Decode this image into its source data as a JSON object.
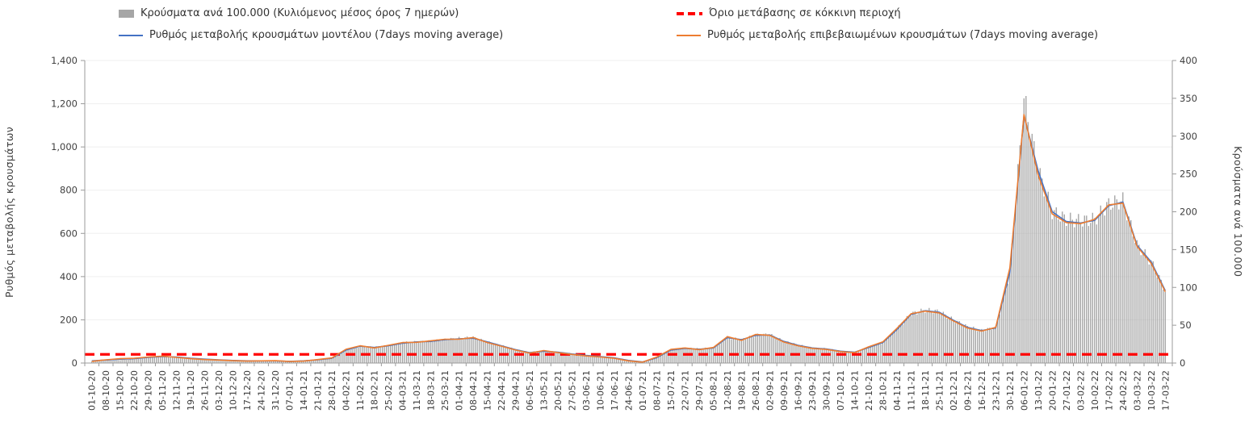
{
  "chart_data": {
    "type": "bar+line",
    "title": "",
    "left_axis": {
      "label": "Ρυθμός μεταβολής κρουσμάτων",
      "min": 0,
      "max": 1400,
      "step": 200,
      "tick_labels": [
        "0",
        "200",
        "400",
        "600",
        "800",
        "1,000",
        "1,200",
        "1,400"
      ]
    },
    "right_axis": {
      "label": "Κρούσματα ανά 100.000",
      "min": 0,
      "max": 400,
      "step": 50,
      "tick_labels": [
        "0",
        "50",
        "100",
        "150",
        "200",
        "250",
        "300",
        "350",
        "400"
      ]
    },
    "threshold": {
      "label": "Όριο μετάβασης σε κόκκινη περιοχή",
      "value": 40,
      "axis": "left",
      "color": "#ff0000"
    },
    "x_labels": [
      "01-10-20",
      "08-10-20",
      "15-10-20",
      "22-10-20",
      "29-10-20",
      "05-11-20",
      "12-11-20",
      "19-11-20",
      "26-11-20",
      "03-12-20",
      "10-12-20",
      "17-12-20",
      "24-12-20",
      "31-12-20",
      "07-01-21",
      "14-01-21",
      "21-01-21",
      "28-01-21",
      "04-02-21",
      "11-02-21",
      "18-02-21",
      "25-02-21",
      "04-03-21",
      "11-03-21",
      "18-03-21",
      "25-03-21",
      "01-04-21",
      "08-04-21",
      "15-04-21",
      "22-04-21",
      "29-04-21",
      "06-05-21",
      "13-05-21",
      "20-05-21",
      "27-05-21",
      "03-06-21",
      "10-06-21",
      "17-06-21",
      "24-06-21",
      "01-07-21",
      "08-07-21",
      "15-07-21",
      "22-07-21",
      "29-07-21",
      "05-08-21",
      "12-08-21",
      "19-08-21",
      "26-08-21",
      "02-09-21",
      "09-09-21",
      "16-09-21",
      "23-09-21",
      "30-09-21",
      "07-10-21",
      "14-10-21",
      "21-10-21",
      "28-10-21",
      "04-11-21",
      "11-11-21",
      "18-11-21",
      "25-11-21",
      "02-12-21",
      "09-12-21",
      "16-12-21",
      "23-12-21",
      "30-12-21",
      "06-01-22",
      "13-01-22",
      "20-01-22",
      "27-01-22",
      "03-02-22",
      "10-02-22",
      "17-02-22",
      "24-02-22",
      "03-03-22",
      "10-03-22",
      "17-03-22"
    ],
    "series": [
      {
        "name": "Κρούσματα ανά 100.000 (Κυλιόμενος μέσος όρος 7 ημερών)",
        "type": "bar",
        "axis": "right",
        "color": "#a3a3a3",
        "values": [
          2,
          3,
          4,
          5,
          7,
          9,
          8,
          6,
          5,
          4,
          4,
          3,
          3,
          3,
          2,
          3,
          4,
          6,
          17,
          22,
          21,
          23,
          27,
          28,
          29,
          31,
          33,
          34,
          28,
          23,
          18,
          14,
          16,
          14,
          12,
          10,
          9,
          7,
          4,
          2,
          7,
          17,
          20,
          19,
          20,
          34,
          31,
          37,
          38,
          29,
          24,
          20,
          19,
          16,
          14,
          21,
          27,
          45,
          65,
          70,
          68,
          57,
          48,
          43,
          47,
          120,
          350,
          255,
          200,
          190,
          188,
          190,
          210,
          215,
          156,
          134,
          96
        ]
      },
      {
        "name": "Ρυθμός μεταβολής κρουσμάτων μοντέλου (7days moving average)",
        "type": "line",
        "axis": "left",
        "color": "#4472c4",
        "values": [
          10,
          14,
          18,
          20,
          26,
          30,
          28,
          22,
          18,
          15,
          12,
          10,
          10,
          10,
          8,
          10,
          15,
          22,
          60,
          78,
          72,
          80,
          92,
          98,
          100,
          108,
          112,
          115,
          98,
          80,
          62,
          48,
          55,
          50,
          42,
          35,
          30,
          24,
          12,
          5,
          25,
          60,
          68,
          64,
          70,
          118,
          108,
          128,
          130,
          100,
          82,
          70,
          65,
          55,
          50,
          72,
          95,
          155,
          225,
          242,
          235,
          198,
          165,
          150,
          162,
          420,
          1145,
          890,
          700,
          655,
          648,
          660,
          728,
          745,
          545,
          468,
          335
        ]
      },
      {
        "name": "Ρυθμός μεταβολής επιβεβαιωμένων κρουσμάτων (7days moving average)",
        "type": "line",
        "axis": "left",
        "color": "#ed7d31",
        "values": [
          8,
          15,
          20,
          22,
          28,
          32,
          26,
          20,
          16,
          14,
          11,
          9,
          10,
          11,
          7,
          9,
          16,
          24,
          64,
          80,
          70,
          82,
          95,
          96,
          103,
          110,
          110,
          118,
          95,
          78,
          60,
          46,
          58,
          48,
          40,
          33,
          28,
          22,
          10,
          4,
          28,
          63,
          70,
          62,
          72,
          122,
          105,
          132,
          128,
          97,
          80,
          68,
          63,
          53,
          48,
          75,
          98,
          160,
          228,
          240,
          232,
          195,
          162,
          148,
          165,
          440,
          1150,
          870,
          690,
          650,
          645,
          665,
          732,
          740,
          540,
          462,
          330
        ]
      }
    ],
    "layout": {
      "legend_position": "top",
      "grid": "horizontal-light",
      "x_label_rotation": 90
    }
  }
}
